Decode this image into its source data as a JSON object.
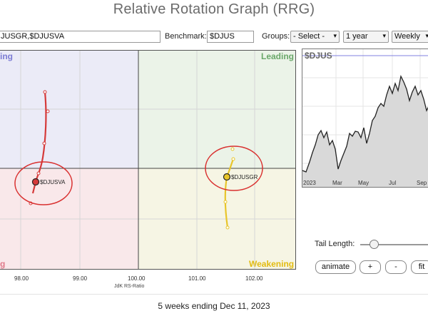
{
  "title": "Relative Rotation Graph (RRG)",
  "toolbar": {
    "symbols_value": "JUSGR,$DJUSVA",
    "benchmark_label": "Benchmark:",
    "benchmark_value": "$DJUS",
    "groups_label": "Groups:",
    "groups_value": "- Select -",
    "period_value": "1 year",
    "frequency_value": "Weekly"
  },
  "quadrants": {
    "improving": "ing",
    "leading": "Leading",
    "lagging": "g",
    "weakening": "Weakening"
  },
  "rrg": {
    "x_ticks": [
      "98.00",
      "99.00",
      "100.00",
      "101.00",
      "102.00"
    ],
    "x_title": "JdK RS-Ratio",
    "series": [
      {
        "name": "$DJUSVA",
        "color": "#d32f2f"
      },
      {
        "name": "$DJUSGR",
        "color": "#e8c52a"
      }
    ]
  },
  "price_chart": {
    "symbol": "$DJUS",
    "date_labels": [
      "2023",
      "Mar",
      "May",
      "Jul",
      "Sep"
    ]
  },
  "controls": {
    "tail_length_label": "Tail Length:",
    "animate_label": "animate",
    "plus_label": "+",
    "minus_label": "-",
    "fit_label": "fit"
  },
  "footer": "5 weeks ending Dec 11, 2023",
  "colors": {
    "improving": "#6f6fd0",
    "leading": "#5da25d",
    "lagging": "#e07080",
    "weakening": "#e0b800",
    "accent_line": "#8080e0"
  }
}
